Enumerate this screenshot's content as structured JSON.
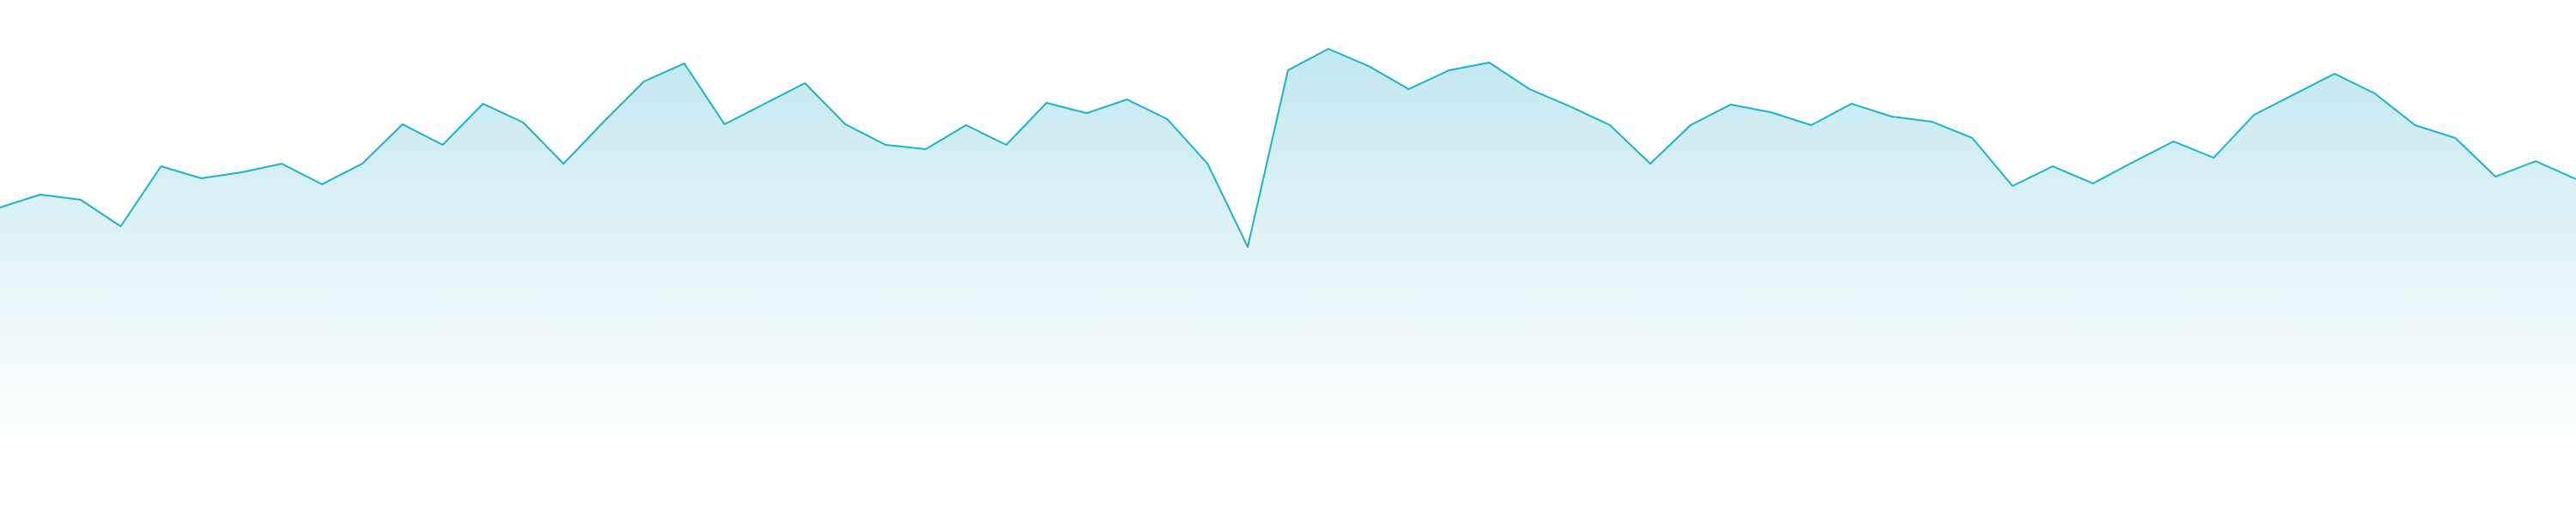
{
  "chart_data": {
    "type": "area",
    "title": "",
    "xlabel": "",
    "ylabel": "",
    "grid": false,
    "legend": "none",
    "ylim": [
      0,
      609
    ],
    "x": [
      0,
      1,
      2,
      3,
      4,
      5,
      6,
      7,
      8,
      9,
      10,
      11,
      12,
      13,
      14,
      15,
      16,
      17,
      18,
      19,
      20,
      21,
      22,
      23,
      24,
      25,
      26,
      27,
      28,
      29,
      30,
      31,
      32,
      33,
      34,
      35,
      36,
      37,
      38,
      39,
      40,
      41,
      42,
      43,
      44,
      45,
      46,
      47,
      48,
      49,
      50,
      51,
      52,
      53,
      54,
      55,
      56,
      57,
      58,
      59,
      60,
      61,
      62,
      63,
      64
    ],
    "series": [
      {
        "values": [
          367,
          382,
          376,
          345,
          415,
          401,
          408,
          418,
          394,
          418,
          464,
          440,
          488,
          466,
          418,
          467,
          514,
          535,
          464,
          488,
          512,
          464,
          440,
          435,
          463,
          440,
          489,
          477,
          493,
          470,
          418,
          321,
          527,
          552,
          532,
          505,
          527,
          536,
          505,
          485,
          463,
          418,
          463,
          487,
          478,
          463,
          488,
          473,
          467,
          448,
          392,
          415,
          395,
          420,
          444,
          425,
          475,
          499,
          523,
          500,
          463,
          448,
          403,
          421,
          400
        ]
      }
    ],
    "colors": {
      "line": "#1ab3cc",
      "fill_top": "#bfe6ee",
      "fill_bottom": "#ffffff",
      "background": "#ffffff"
    }
  }
}
